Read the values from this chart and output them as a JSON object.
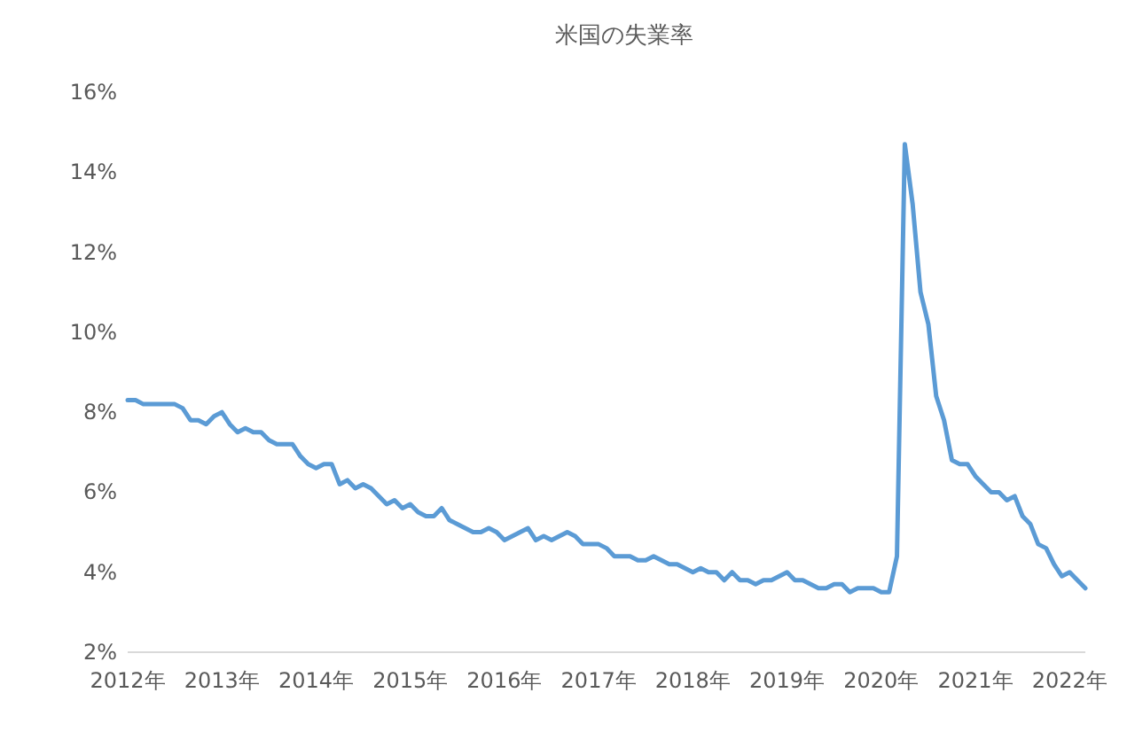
{
  "chart_data": {
    "type": "line",
    "title": "米国の失業率",
    "color": "#5b9bd5",
    "line_style": "solid",
    "xlim": [
      "2012-01",
      "2022-03"
    ],
    "xticks": [
      {
        "value": "2012-01",
        "label": "2012年"
      },
      {
        "value": "2013-01",
        "label": "2013年"
      },
      {
        "value": "2014-01",
        "label": "2014年"
      },
      {
        "value": "2015-01",
        "label": "2015年"
      },
      {
        "value": "2016-01",
        "label": "2016年"
      },
      {
        "value": "2017-01",
        "label": "2017年"
      },
      {
        "value": "2018-01",
        "label": "2018年"
      },
      {
        "value": "2019-01",
        "label": "2019年"
      },
      {
        "value": "2020-01",
        "label": "2020年"
      },
      {
        "value": "2021-01",
        "label": "2021年"
      },
      {
        "value": "2022-01",
        "label": "2022年"
      }
    ],
    "ylim": [
      2,
      16
    ],
    "yticks": [
      {
        "value": 2,
        "label": "2%"
      },
      {
        "value": 4,
        "label": "4%"
      },
      {
        "value": 6,
        "label": "6%"
      },
      {
        "value": 8,
        "label": "8%"
      },
      {
        "value": 10,
        "label": "10%"
      },
      {
        "value": 12,
        "label": "12%"
      },
      {
        "value": 14,
        "label": "14%"
      },
      {
        "value": 16,
        "label": "16%"
      }
    ],
    "x": [
      "2012-01",
      "2012-02",
      "2012-03",
      "2012-04",
      "2012-05",
      "2012-06",
      "2012-07",
      "2012-08",
      "2012-09",
      "2012-10",
      "2012-11",
      "2012-12",
      "2013-01",
      "2013-02",
      "2013-03",
      "2013-04",
      "2013-05",
      "2013-06",
      "2013-07",
      "2013-08",
      "2013-09",
      "2013-10",
      "2013-11",
      "2013-12",
      "2014-01",
      "2014-02",
      "2014-03",
      "2014-04",
      "2014-05",
      "2014-06",
      "2014-07",
      "2014-08",
      "2014-09",
      "2014-10",
      "2014-11",
      "2014-12",
      "2015-01",
      "2015-02",
      "2015-03",
      "2015-04",
      "2015-05",
      "2015-06",
      "2015-07",
      "2015-08",
      "2015-09",
      "2015-10",
      "2015-11",
      "2015-12",
      "2016-01",
      "2016-02",
      "2016-03",
      "2016-04",
      "2016-05",
      "2016-06",
      "2016-07",
      "2016-08",
      "2016-09",
      "2016-10",
      "2016-11",
      "2016-12",
      "2017-01",
      "2017-02",
      "2017-03",
      "2017-04",
      "2017-05",
      "2017-06",
      "2017-07",
      "2017-08",
      "2017-09",
      "2017-10",
      "2017-11",
      "2017-12",
      "2018-01",
      "2018-02",
      "2018-03",
      "2018-04",
      "2018-05",
      "2018-06",
      "2018-07",
      "2018-08",
      "2018-09",
      "2018-10",
      "2018-11",
      "2018-12",
      "2019-01",
      "2019-02",
      "2019-03",
      "2019-04",
      "2019-05",
      "2019-06",
      "2019-07",
      "2019-08",
      "2019-09",
      "2019-10",
      "2019-11",
      "2019-12",
      "2020-01",
      "2020-02",
      "2020-03",
      "2020-04",
      "2020-05",
      "2020-06",
      "2020-07",
      "2020-08",
      "2020-09",
      "2020-10",
      "2020-11",
      "2020-12",
      "2021-01",
      "2021-02",
      "2021-03",
      "2021-04",
      "2021-05",
      "2021-06",
      "2021-07",
      "2021-08",
      "2021-09",
      "2021-10",
      "2021-11",
      "2021-12",
      "2022-01",
      "2022-02",
      "2022-03"
    ],
    "values": [
      8.3,
      8.3,
      8.2,
      8.2,
      8.2,
      8.2,
      8.2,
      8.1,
      7.8,
      7.8,
      7.7,
      7.9,
      8.0,
      7.7,
      7.5,
      7.6,
      7.5,
      7.5,
      7.3,
      7.2,
      7.2,
      7.2,
      6.9,
      6.7,
      6.6,
      6.7,
      6.7,
      6.2,
      6.3,
      6.1,
      6.2,
      6.1,
      5.9,
      5.7,
      5.8,
      5.6,
      5.7,
      5.5,
      5.4,
      5.4,
      5.6,
      5.3,
      5.2,
      5.1,
      5.0,
      5.0,
      5.1,
      5.0,
      4.8,
      4.9,
      5.0,
      5.1,
      4.8,
      4.9,
      4.8,
      4.9,
      5.0,
      4.9,
      4.7,
      4.7,
      4.7,
      4.6,
      4.4,
      4.4,
      4.4,
      4.3,
      4.3,
      4.4,
      4.3,
      4.2,
      4.2,
      4.1,
      4.0,
      4.1,
      4.0,
      4.0,
      3.8,
      4.0,
      3.8,
      3.8,
      3.7,
      3.8,
      3.8,
      3.9,
      4.0,
      3.8,
      3.8,
      3.7,
      3.6,
      3.6,
      3.7,
      3.7,
      3.5,
      3.6,
      3.6,
      3.6,
      3.5,
      3.5,
      4.4,
      14.7,
      13.2,
      11.0,
      10.2,
      8.4,
      7.8,
      6.8,
      6.7,
      6.7,
      6.4,
      6.2,
      6.0,
      6.0,
      5.8,
      5.9,
      5.4,
      5.2,
      4.7,
      4.6,
      4.2,
      3.9,
      4.0,
      3.8,
      3.6
    ]
  }
}
